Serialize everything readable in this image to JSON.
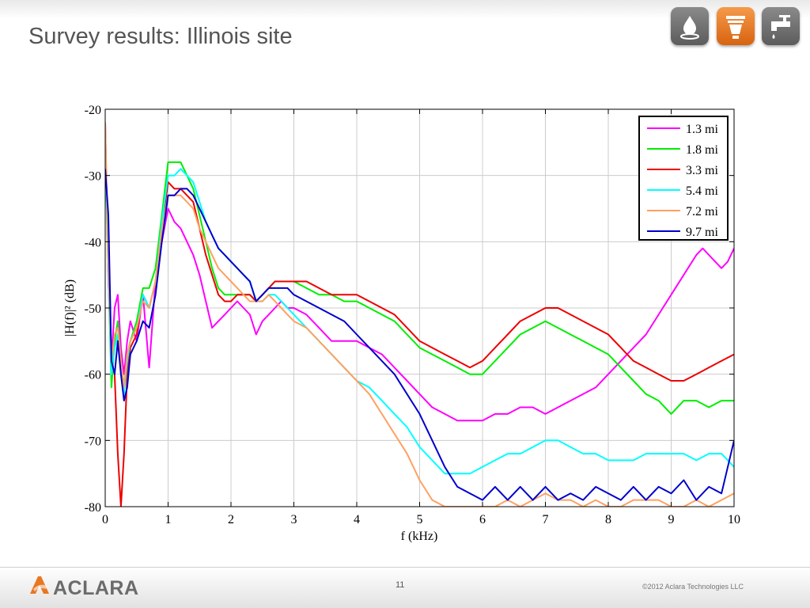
{
  "slide": {
    "title": "Survey results: Illinois site",
    "page_number": "11",
    "copyright": "©2012 Aclara Technologies LLC",
    "logo_text": "ACLARA",
    "header_icons": [
      {
        "name": "water-drop-icon",
        "color": "#6e6e6e"
      },
      {
        "name": "electric-meter-icon",
        "color": "#e87722"
      },
      {
        "name": "water-faucet-icon",
        "color": "#6e6e6e"
      }
    ],
    "accent_color": "#e87722"
  },
  "chart_data": {
    "type": "line",
    "title": "",
    "xlabel": "f (kHz)",
    "ylabel": "|H(f)|² (dB)",
    "xlim": [
      0,
      10
    ],
    "ylim": [
      -80,
      -20
    ],
    "xticks": [
      0,
      1,
      2,
      3,
      4,
      5,
      6,
      7,
      8,
      9,
      10
    ],
    "yticks": [
      -20,
      -30,
      -40,
      -50,
      -60,
      -70,
      -80
    ],
    "grid": true,
    "legend_position": "top-right",
    "series": [
      {
        "name": "1.3 mi",
        "color": "#ff00ff",
        "x": [
          0,
          0.05,
          0.1,
          0.15,
          0.2,
          0.25,
          0.3,
          0.35,
          0.4,
          0.5,
          0.6,
          0.7,
          0.8,
          0.9,
          1.0,
          1.1,
          1.2,
          1.3,
          1.4,
          1.5,
          1.6,
          1.7,
          1.8,
          1.9,
          2.0,
          2.1,
          2.2,
          2.3,
          2.4,
          2.5,
          2.6,
          2.7,
          2.8,
          2.9,
          3.0,
          3.2,
          3.4,
          3.6,
          3.8,
          4.0,
          4.2,
          4.4,
          4.6,
          4.8,
          5.0,
          5.2,
          5.4,
          5.6,
          5.8,
          6.0,
          6.2,
          6.4,
          6.6,
          6.8,
          7.0,
          7.2,
          7.4,
          7.6,
          7.8,
          8.0,
          8.2,
          8.4,
          8.6,
          8.8,
          9.0,
          9.2,
          9.4,
          9.5,
          9.6,
          9.7,
          9.8,
          9.9,
          10.0
        ],
        "y": [
          -22,
          -46,
          -58,
          -50,
          -48,
          -56,
          -60,
          -55,
          -52,
          -55,
          -48,
          -59,
          -46,
          -40,
          -35,
          -37,
          -38,
          -40,
          -42,
          -45,
          -49,
          -53,
          -52,
          -51,
          -50,
          -49,
          -50,
          -51,
          -54,
          -52,
          -51,
          -50,
          -49,
          -50,
          -50,
          -51,
          -53,
          -55,
          -55,
          -55,
          -56,
          -57,
          -59,
          -61,
          -63,
          -65,
          -66,
          -67,
          -67,
          -67,
          -66,
          -66,
          -65,
          -65,
          -66,
          -65,
          -64,
          -63,
          -62,
          -60,
          -58,
          -56,
          -54,
          -51,
          -48,
          -45,
          -42,
          -41,
          -42,
          -43,
          -44,
          -43,
          -41
        ]
      },
      {
        "name": "1.8 mi",
        "color": "#00ee00",
        "x": [
          0,
          0.05,
          0.1,
          0.15,
          0.2,
          0.25,
          0.3,
          0.35,
          0.4,
          0.5,
          0.6,
          0.7,
          0.8,
          0.9,
          1.0,
          1.1,
          1.2,
          1.3,
          1.4,
          1.5,
          1.6,
          1.7,
          1.8,
          1.9,
          2.0,
          2.1,
          2.2,
          2.3,
          2.4,
          2.5,
          2.6,
          2.7,
          2.8,
          2.9,
          3.0,
          3.2,
          3.4,
          3.6,
          3.8,
          4.0,
          4.2,
          4.4,
          4.6,
          4.8,
          5.0,
          5.2,
          5.4,
          5.6,
          5.8,
          6.0,
          6.2,
          6.4,
          6.6,
          6.8,
          7.0,
          7.2,
          7.4,
          7.6,
          7.8,
          8.0,
          8.2,
          8.4,
          8.6,
          8.8,
          9.0,
          9.2,
          9.4,
          9.6,
          9.8,
          10.0
        ],
        "y": [
          -26,
          -45,
          -62,
          -55,
          -52,
          -58,
          -62,
          -57,
          -55,
          -52,
          -47,
          -47,
          -44,
          -36,
          -28,
          -28,
          -28,
          -30,
          -32,
          -36,
          -40,
          -44,
          -47,
          -48,
          -48,
          -48,
          -48,
          -48,
          -49,
          -48,
          -47,
          -46,
          -46,
          -46,
          -46,
          -47,
          -48,
          -48,
          -49,
          -49,
          -50,
          -51,
          -52,
          -54,
          -56,
          -57,
          -58,
          -59,
          -60,
          -60,
          -58,
          -56,
          -54,
          -53,
          -52,
          -53,
          -54,
          -55,
          -56,
          -57,
          -59,
          -61,
          -63,
          -64,
          -66,
          -64,
          -64,
          -65,
          -64,
          -64
        ]
      },
      {
        "name": "3.3 mi",
        "color": "#ee0000",
        "x": [
          0,
          0.05,
          0.1,
          0.15,
          0.2,
          0.25,
          0.3,
          0.35,
          0.4,
          0.5,
          0.6,
          0.7,
          0.8,
          0.9,
          1.0,
          1.1,
          1.2,
          1.3,
          1.4,
          1.5,
          1.6,
          1.7,
          1.8,
          1.9,
          2.0,
          2.1,
          2.2,
          2.3,
          2.4,
          2.5,
          2.6,
          2.7,
          2.8,
          2.9,
          3.0,
          3.2,
          3.4,
          3.6,
          3.8,
          4.0,
          4.2,
          4.4,
          4.6,
          4.8,
          5.0,
          5.2,
          5.4,
          5.6,
          5.8,
          6.0,
          6.2,
          6.4,
          6.6,
          6.8,
          7.0,
          7.2,
          7.4,
          7.6,
          7.8,
          8.0,
          8.2,
          8.4,
          8.6,
          8.8,
          9.0,
          9.2,
          9.4,
          9.6,
          9.8,
          10.0
        ],
        "y": [
          -24,
          -44,
          -58,
          -60,
          -72,
          -80,
          -72,
          -60,
          -56,
          -54,
          -48,
          -50,
          -46,
          -38,
          -31,
          -32,
          -32,
          -33,
          -34,
          -38,
          -42,
          -45,
          -48,
          -49,
          -49,
          -48,
          -48,
          -48,
          -49,
          -48,
          -47,
          -46,
          -46,
          -46,
          -46,
          -46,
          -47,
          -48,
          -48,
          -48,
          -49,
          -50,
          -51,
          -53,
          -55,
          -56,
          -57,
          -58,
          -59,
          -58,
          -56,
          -54,
          -52,
          -51,
          -50,
          -50,
          -51,
          -52,
          -53,
          -54,
          -56,
          -58,
          -59,
          -60,
          -61,
          -61,
          -60,
          -59,
          -58,
          -57
        ]
      },
      {
        "name": "5.4 mi",
        "color": "#00ffff",
        "x": [
          0,
          0.05,
          0.1,
          0.15,
          0.2,
          0.25,
          0.3,
          0.35,
          0.4,
          0.5,
          0.6,
          0.7,
          0.8,
          0.9,
          1.0,
          1.1,
          1.2,
          1.3,
          1.4,
          1.5,
          1.6,
          1.7,
          1.8,
          1.9,
          2.0,
          2.1,
          2.2,
          2.3,
          2.4,
          2.5,
          2.6,
          2.7,
          2.8,
          2.9,
          3.0,
          3.2,
          3.4,
          3.6,
          3.8,
          4.0,
          4.2,
          4.4,
          4.6,
          4.8,
          5.0,
          5.2,
          5.4,
          5.6,
          5.8,
          6.0,
          6.2,
          6.4,
          6.6,
          6.8,
          7.0,
          7.2,
          7.4,
          7.6,
          7.8,
          8.0,
          8.2,
          8.4,
          8.6,
          8.8,
          9.0,
          9.2,
          9.4,
          9.6,
          9.8,
          10.0
        ],
        "y": [
          -25,
          -45,
          -60,
          -56,
          -54,
          -60,
          -63,
          -58,
          -55,
          -53,
          -48,
          -50,
          -46,
          -37,
          -30,
          -30,
          -29,
          -30,
          -31,
          -34,
          -37,
          -39,
          -41,
          -42,
          -43,
          -44,
          -45,
          -46,
          -49,
          -49,
          -48,
          -48,
          -49,
          -50,
          -51,
          -53,
          -55,
          -57,
          -59,
          -61,
          -62,
          -64,
          -66,
          -68,
          -71,
          -73,
          -75,
          -75,
          -75,
          -74,
          -73,
          -72,
          -72,
          -71,
          -70,
          -70,
          -71,
          -72,
          -72,
          -73,
          -73,
          -73,
          -72,
          -72,
          -72,
          -72,
          -73,
          -72,
          -72,
          -74
        ]
      },
      {
        "name": "7.2 mi",
        "color": "#ffa060",
        "x": [
          0,
          0.05,
          0.1,
          0.15,
          0.2,
          0.25,
          0.3,
          0.35,
          0.4,
          0.5,
          0.6,
          0.7,
          0.8,
          0.9,
          1.0,
          1.1,
          1.2,
          1.3,
          1.4,
          1.5,
          1.6,
          1.7,
          1.8,
          1.9,
          2.0,
          2.1,
          2.2,
          2.3,
          2.4,
          2.5,
          2.6,
          2.7,
          2.8,
          2.9,
          3.0,
          3.2,
          3.4,
          3.6,
          3.8,
          4.0,
          4.2,
          4.4,
          4.6,
          4.8,
          5.0,
          5.2,
          5.4,
          5.6,
          5.8,
          6.0,
          6.2,
          6.4,
          6.6,
          6.8,
          7.0,
          7.2,
          7.4,
          7.6,
          7.8,
          8.0,
          8.2,
          8.4,
          8.6,
          8.8,
          9.0,
          9.2,
          9.4,
          9.6,
          9.8,
          10.0
        ],
        "y": [
          -22,
          -44,
          -58,
          -54,
          -53,
          -58,
          -62,
          -57,
          -55,
          -53,
          -49,
          -50,
          -46,
          -38,
          -33,
          -33,
          -33,
          -34,
          -35,
          -38,
          -40,
          -42,
          -44,
          -45,
          -46,
          -47,
          -48,
          -49,
          -49,
          -49,
          -48,
          -49,
          -50,
          -51,
          -52,
          -53,
          -55,
          -57,
          -59,
          -61,
          -63,
          -66,
          -69,
          -72,
          -76,
          -79,
          -80,
          -80,
          -80,
          -80,
          -80,
          -79,
          -80,
          -79,
          -78,
          -79,
          -79,
          -80,
          -79,
          -80,
          -80,
          -79,
          -79,
          -79,
          -80,
          -80,
          -79,
          -80,
          -79,
          -78
        ]
      },
      {
        "name": "9.7 mi",
        "color": "#0000cc",
        "x": [
          0,
          0.05,
          0.1,
          0.15,
          0.2,
          0.25,
          0.3,
          0.35,
          0.4,
          0.5,
          0.6,
          0.7,
          0.8,
          0.9,
          1.0,
          1.1,
          1.2,
          1.3,
          1.4,
          1.5,
          1.6,
          1.7,
          1.8,
          1.9,
          2.0,
          2.1,
          2.2,
          2.3,
          2.4,
          2.5,
          2.6,
          2.7,
          2.8,
          2.9,
          3.0,
          3.2,
          3.4,
          3.6,
          3.8,
          4.0,
          4.2,
          4.4,
          4.6,
          4.8,
          5.0,
          5.2,
          5.4,
          5.6,
          5.8,
          6.0,
          6.2,
          6.4,
          6.6,
          6.8,
          7.0,
          7.2,
          7.4,
          7.6,
          7.8,
          8.0,
          8.2,
          8.4,
          8.6,
          8.8,
          9.0,
          9.2,
          9.4,
          9.6,
          9.8,
          10.0
        ],
        "y": [
          -29,
          -36,
          -58,
          -60,
          -55,
          -60,
          -64,
          -62,
          -57,
          -55,
          -52,
          -53,
          -48,
          -40,
          -33,
          -33,
          -32,
          -32,
          -33,
          -35,
          -37,
          -39,
          -41,
          -42,
          -43,
          -44,
          -45,
          -46,
          -49,
          -48,
          -47,
          -47,
          -47,
          -47,
          -48,
          -49,
          -50,
          -51,
          -52,
          -54,
          -56,
          -58,
          -60,
          -63,
          -66,
          -70,
          -74,
          -77,
          -78,
          -79,
          -77,
          -79,
          -77,
          -79,
          -77,
          -79,
          -78,
          -79,
          -77,
          -78,
          -79,
          -77,
          -79,
          -77,
          -78,
          -76,
          -79,
          -77,
          -78,
          -70
        ]
      }
    ]
  }
}
